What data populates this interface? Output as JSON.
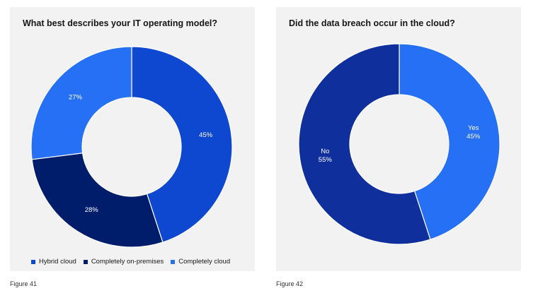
{
  "chart_data": [
    {
      "type": "pie",
      "variant": "donut",
      "title": "What best describes your IT operating model?",
      "categories": [
        "Hybrid cloud",
        "Completely on-premises",
        "Completely cloud"
      ],
      "values": [
        45,
        28,
        27
      ],
      "value_labels": [
        "45%",
        "28%",
        "27%"
      ],
      "colors": [
        "#0f48d0",
        "#001d6c",
        "#2570f5"
      ],
      "legend": "bottom",
      "caption": "Figure 41"
    },
    {
      "type": "pie",
      "variant": "donut",
      "title": "Did the data breach occur in the cloud?",
      "categories": [
        "Yes",
        "No"
      ],
      "values": [
        45,
        55
      ],
      "value_labels": [
        "45%",
        "55%"
      ],
      "colors": [
        "#2570f5",
        "#0f2f9c"
      ],
      "legend": "none",
      "caption": "Figure 42"
    }
  ]
}
